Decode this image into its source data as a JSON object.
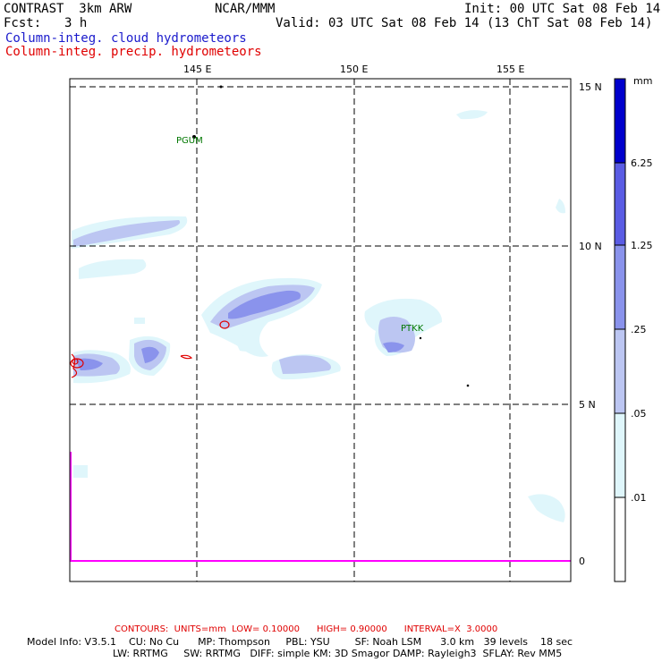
{
  "header": {
    "model": "CONTRAST  3km ARW",
    "center": "NCAR/MMM",
    "init": "Init: 00 UTC Sat 08 Feb 14",
    "fcst_label": "Fcst:",
    "fcst_value": "3 h",
    "valid": "Valid: 03 UTC Sat 08 Feb 14 (13 ChT Sat 08 Feb 14)",
    "field1": "Column-integ. cloud hydrometeors",
    "field2": "Column-integ. precip. hydrometeors"
  },
  "map": {
    "lon_labels": [
      "145 E",
      "150 E",
      "155 E"
    ],
    "lat_labels": [
      "15 N",
      "10 N",
      "5 N",
      "0"
    ],
    "stations": [
      "PGUM",
      "PTKK"
    ]
  },
  "colorbar": {
    "unit": "mm",
    "levels": [
      ".01",
      ".05",
      ".25",
      "1.25",
      "6.25"
    ],
    "colors": [
      "#ffffff",
      "#dff6fb",
      "#bcc6f2",
      "#8a93ec",
      "#5a5ce4",
      "#2a22dd",
      "#0000cc"
    ]
  },
  "footer": {
    "contours": "CONTOURS:  UNITS=mm  LOW= 0.10000      HIGH= 0.90000      INTERVAL=X  3.0000",
    "model_info_1": "Model Info: V3.5.1    CU: No Cu      MP: Thompson     PBL: YSU        SF: Noah LSM      3.0 km   39 levels    18 sec",
    "model_info_2": "LW: RRTMG     SW: RRTMG   DIFF: simple KM: 3D Smagor DAMP: Rayleigh3  SFLAY: Rev MM5"
  },
  "colors": {
    "cloud_light": "#dff6fb",
    "cloud_mid": "#bcc6f2",
    "cloud_dark": "#8a93ec",
    "precip_contour": "#e00000",
    "coast": "#ff00ff",
    "station": "#007700"
  }
}
